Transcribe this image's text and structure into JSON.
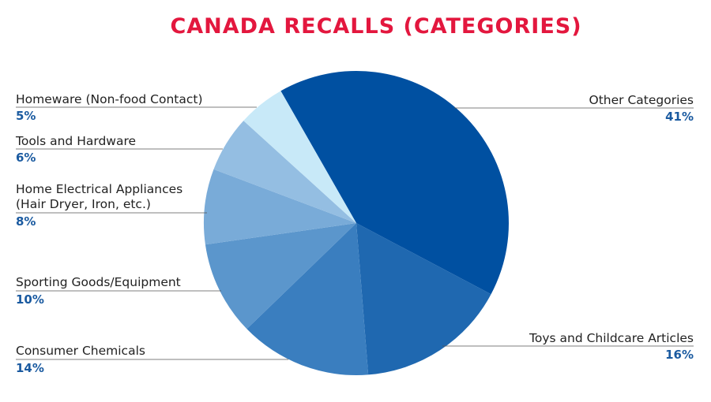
{
  "chart_data": {
    "type": "pie",
    "title": "CANADA RECALLS (CATEGORIES)",
    "categories": [
      "Other Categories",
      "Toys and Childcare Articles",
      "Consumer Chemicals",
      "Sporting Goods/Equipment",
      "Home Electrical Appliances\n(Hair Dryer, Iron, etc.)",
      "Tools and Hardware",
      "Homeware (Non-food Contact)"
    ],
    "values": [
      41,
      16,
      14,
      10,
      8,
      6,
      5
    ],
    "value_labels": [
      "41%",
      "16%",
      "14%",
      "10%",
      "8%",
      "6%",
      "5%"
    ],
    "colors": [
      "#0050a1",
      "#1f68b0",
      "#3a7ebf",
      "#5b96cc",
      "#79abd8",
      "#94bee2",
      "#c8e9f8"
    ]
  }
}
